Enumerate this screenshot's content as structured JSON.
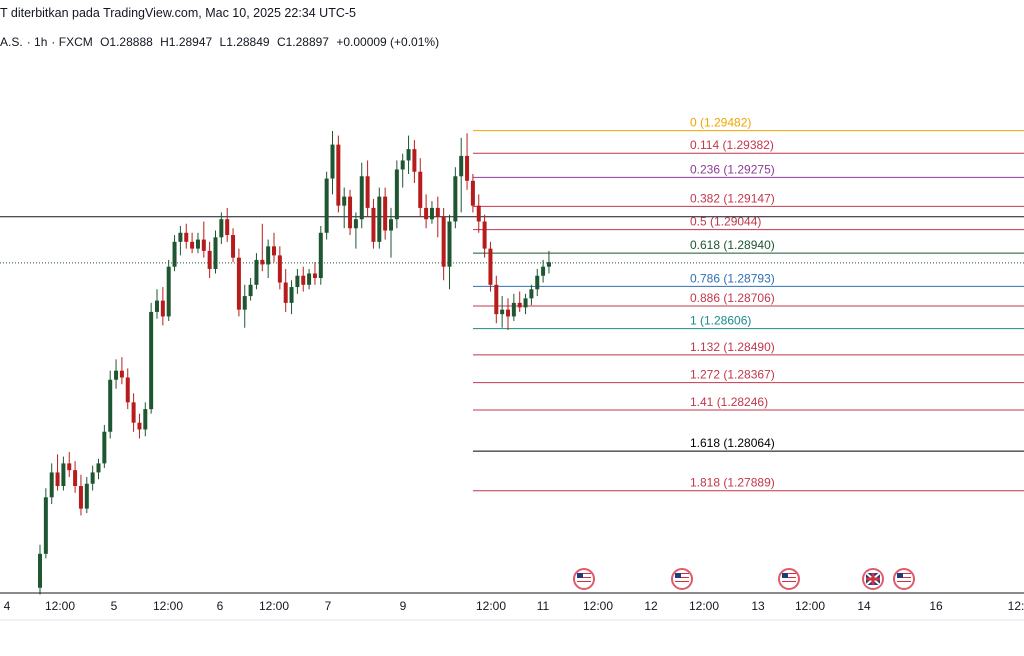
{
  "header": {
    "published": "T diterbitkan pada TradingView.com, Mac 10, 2025 22:34 UTC-5",
    "symbol": "A.S.",
    "interval": "1h",
    "exchange": "FXCM",
    "open": "O1.28888",
    "high": "H1.28947",
    "low": "L1.28849",
    "close": "C1.28897",
    "change": "+0.00009 (+0.01%)"
  },
  "colors": {
    "up": "#26a69a",
    "up_body": "#1e5631",
    "down": "#b71c1c",
    "axis_line": "#131722"
  },
  "chart_data": {
    "type": "candlestick",
    "ylim": [
      1.2745,
      1.2975
    ],
    "horizontal_line": 1.29101,
    "last_price": 1.28897,
    "fibonacci": [
      {
        "label": "0 (1.29482)",
        "value": 1.29482,
        "color": "#f0a500"
      },
      {
        "label": "0.114 (1.29382)",
        "value": 1.29382,
        "color": "#c2374b"
      },
      {
        "label": "0.236 (1.29275)",
        "value": 1.29275,
        "color": "#8e3a9b"
      },
      {
        "label": "0.382 (1.29147)",
        "value": 1.29147,
        "color": "#c2374b"
      },
      {
        "label": "0.5 (1.29044)",
        "value": 1.29044,
        "color": "#c2374b"
      },
      {
        "label": "0.618 (1.28940)",
        "value": 1.2894,
        "color": "#1e5631"
      },
      {
        "label": "0.786 (1.28793)",
        "value": 1.28793,
        "color": "#2f6fb5"
      },
      {
        "label": "0.886 (1.28706)",
        "value": 1.28706,
        "color": "#c2374b"
      },
      {
        "label": "1 (1.28606)",
        "value": 1.28606,
        "color": "#1b8a8a"
      },
      {
        "label": "1.132 (1.28490)",
        "value": 1.2849,
        "color": "#c2374b"
      },
      {
        "label": "1.272 (1.28367)",
        "value": 1.28367,
        "color": "#c2374b"
      },
      {
        "label": "1.41 (1.28246)",
        "value": 1.28246,
        "color": "#c2374b"
      },
      {
        "label": "1.618 (1.28064)",
        "value": 1.28064,
        "color": "#000000"
      },
      {
        "label": "1.818 (1.27889)",
        "value": 1.27889,
        "color": "#c2374b"
      }
    ],
    "x_tick_labels": [
      "4",
      "12:00",
      "5",
      "12:00",
      "6",
      "12:00",
      "7",
      "9",
      "12:00",
      "11",
      "12:00",
      "12",
      "12:00",
      "13",
      "12:00",
      "14",
      "16",
      "12:"
    ],
    "candles": [
      [
        1.2746,
        1.2765,
        1.2743,
        1.2761
      ],
      [
        1.2761,
        1.279,
        1.2759,
        1.2786
      ],
      [
        1.2786,
        1.2801,
        1.2783,
        1.2797
      ],
      [
        1.2797,
        1.2805,
        1.2789,
        1.2791
      ],
      [
        1.2791,
        1.2804,
        1.2789,
        1.2801
      ],
      [
        1.2801,
        1.2806,
        1.2795,
        1.2798
      ],
      [
        1.2798,
        1.2802,
        1.2788,
        1.2791
      ],
      [
        1.2791,
        1.2796,
        1.2778,
        1.2781
      ],
      [
        1.2781,
        1.2795,
        1.2779,
        1.2792
      ],
      [
        1.2792,
        1.28,
        1.2789,
        1.2797
      ],
      [
        1.2797,
        1.2803,
        1.2794,
        1.2801
      ],
      [
        1.2801,
        1.2818,
        1.2799,
        1.2815
      ],
      [
        1.2815,
        1.2842,
        1.2812,
        1.2838
      ],
      [
        1.2838,
        1.2847,
        1.2834,
        1.2842
      ],
      [
        1.2842,
        1.2848,
        1.2836,
        1.2839
      ],
      [
        1.2839,
        1.2843,
        1.2825,
        1.2828
      ],
      [
        1.2828,
        1.2832,
        1.2815,
        1.2819
      ],
      [
        1.2819,
        1.2823,
        1.2812,
        1.2816
      ],
      [
        1.2816,
        1.2828,
        1.2813,
        1.2825
      ],
      [
        1.2825,
        1.2872,
        1.2823,
        1.2868
      ],
      [
        1.2868,
        1.2878,
        1.2865,
        1.2873
      ],
      [
        1.2873,
        1.2879,
        1.2862,
        1.2866
      ],
      [
        1.2866,
        1.2891,
        1.2864,
        1.2888
      ],
      [
        1.2888,
        1.2902,
        1.2886,
        1.2899
      ],
      [
        1.2899,
        1.2906,
        1.2893,
        1.2903
      ],
      [
        1.2903,
        1.2907,
        1.2896,
        1.2899
      ],
      [
        1.2899,
        1.2903,
        1.2894,
        1.2896
      ],
      [
        1.2896,
        1.2903,
        1.2894,
        1.29
      ],
      [
        1.29,
        1.2908,
        1.2892,
        1.2895
      ],
      [
        1.2895,
        1.2899,
        1.2883,
        1.2887
      ],
      [
        1.2887,
        1.2904,
        1.2885,
        1.2901
      ],
      [
        1.2901,
        1.2912,
        1.2898,
        1.2909
      ],
      [
        1.2909,
        1.2914,
        1.2899,
        1.2902
      ],
      [
        1.2902,
        1.2905,
        1.289,
        1.2892
      ],
      [
        1.2892,
        1.2896,
        1.2866,
        1.2869
      ],
      [
        1.2869,
        1.288,
        1.2861,
        1.2875
      ],
      [
        1.2875,
        1.2883,
        1.2873,
        1.288
      ],
      [
        1.288,
        1.2894,
        1.2878,
        1.2891
      ],
      [
        1.2891,
        1.2907,
        1.2886,
        1.2889
      ],
      [
        1.2889,
        1.29,
        1.2883,
        1.2897
      ],
      [
        1.2897,
        1.2903,
        1.289,
        1.2893
      ],
      [
        1.2893,
        1.2897,
        1.2878,
        1.2881
      ],
      [
        1.2881,
        1.2887,
        1.2868,
        1.2872
      ],
      [
        1.2872,
        1.2882,
        1.2867,
        1.2879
      ],
      [
        1.2879,
        1.2887,
        1.2876,
        1.2884
      ],
      [
        1.2884,
        1.2888,
        1.2877,
        1.288
      ],
      [
        1.288,
        1.2887,
        1.2878,
        1.2885
      ],
      [
        1.2885,
        1.289,
        1.288,
        1.2883
      ],
      [
        1.2883,
        1.2906,
        1.288,
        1.2903
      ],
      [
        1.2903,
        1.293,
        1.29,
        1.2927
      ],
      [
        1.2927,
        1.2948,
        1.292,
        1.2942
      ],
      [
        1.2942,
        1.2946,
        1.2912,
        1.2915
      ],
      [
        1.2915,
        1.2923,
        1.2905,
        1.2919
      ],
      [
        1.2919,
        1.2922,
        1.2902,
        1.2905
      ],
      [
        1.2905,
        1.2912,
        1.2896,
        1.2909
      ],
      [
        1.2909,
        1.2934,
        1.2905,
        1.2928
      ],
      [
        1.2928,
        1.2935,
        1.291,
        1.2914
      ],
      [
        1.2914,
        1.2918,
        1.2896,
        1.2899
      ],
      [
        1.2899,
        1.2923,
        1.2896,
        1.2919
      ],
      [
        1.2919,
        1.2923,
        1.29,
        1.2904
      ],
      [
        1.2904,
        1.2914,
        1.2892,
        1.2909
      ],
      [
        1.2909,
        1.2935,
        1.2905,
        1.2931
      ],
      [
        1.2931,
        1.2938,
        1.2923,
        1.2935
      ],
      [
        1.2935,
        1.2946,
        1.2929,
        1.294
      ],
      [
        1.294,
        1.2944,
        1.2925,
        1.293
      ],
      [
        1.293,
        1.2936,
        1.291,
        1.2914
      ],
      [
        1.2914,
        1.292,
        1.2905,
        1.2909
      ],
      [
        1.2909,
        1.2917,
        1.2907,
        1.2914
      ],
      [
        1.2914,
        1.2919,
        1.2901,
        1.291
      ],
      [
        1.291,
        1.2914,
        1.2882,
        1.2888
      ],
      [
        1.2888,
        1.2911,
        1.2878,
        1.2908
      ],
      [
        1.2908,
        1.2932,
        1.2905,
        1.2928
      ],
      [
        1.2928,
        1.2945,
        1.2912,
        1.2937
      ],
      [
        1.2937,
        1.2947,
        1.2922,
        1.2926
      ],
      [
        1.2926,
        1.2929,
        1.2912,
        1.2915
      ],
      [
        1.2915,
        1.292,
        1.2903,
        1.2908
      ],
      [
        1.2908,
        1.2911,
        1.2892,
        1.2896
      ],
      [
        1.2896,
        1.2899,
        1.2877,
        1.288
      ],
      [
        1.288,
        1.2884,
        1.2863,
        1.2867
      ],
      [
        1.2867,
        1.2875,
        1.2861,
        1.2869
      ],
      [
        1.2869,
        1.2874,
        1.286,
        1.2866
      ],
      [
        1.2866,
        1.2876,
        1.2864,
        1.2872
      ],
      [
        1.2872,
        1.2877,
        1.2868,
        1.287
      ],
      [
        1.287,
        1.2876,
        1.2867,
        1.2874
      ],
      [
        1.2874,
        1.288,
        1.2871,
        1.2878
      ],
      [
        1.2878,
        1.2887,
        1.2875,
        1.2884
      ],
      [
        1.2884,
        1.2891,
        1.2881,
        1.2888
      ],
      [
        1.2888,
        1.2895,
        1.2885,
        1.289
      ]
    ]
  }
}
